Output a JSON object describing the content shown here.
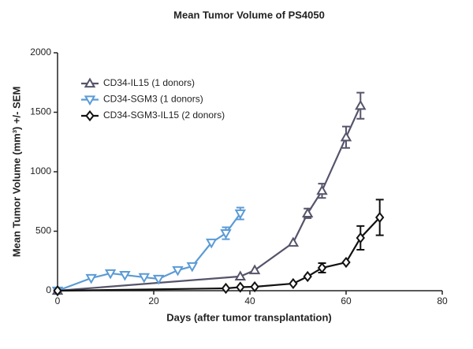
{
  "chart_data": {
    "type": "line",
    "title": "Mean Tumor Volume of PS4050",
    "x_label": "Days  (after tumor transplantation)",
    "y_label": "Mean Tumor Volume (mm³) +/- SEM",
    "xlim": [
      0,
      80
    ],
    "xticks": [
      0,
      20,
      40,
      60,
      80
    ],
    "ylim": [
      0,
      2000
    ],
    "yticks": [
      0,
      500,
      1000,
      1500,
      2000
    ],
    "grid": false,
    "legend": "upper left",
    "series": [
      {
        "name": "CD34-IL15 (1 donors)",
        "color": "#55546a",
        "marker": "triangle-up",
        "x": [
          0,
          38,
          41,
          49,
          52,
          55,
          60,
          63
        ],
        "values": [
          0,
          120,
          172,
          404,
          650,
          840,
          1290,
          1555
        ],
        "errors": [
          null,
          null,
          null,
          null,
          40,
          60,
          90,
          110
        ]
      },
      {
        "name": "CD34-SGM3 (1 donors)",
        "color": "#5b9bd5",
        "marker": "triangle-down",
        "x": [
          0,
          7,
          11,
          14,
          18,
          21,
          25,
          28,
          32,
          35,
          38
        ],
        "values": [
          0,
          106,
          146,
          132,
          113,
          99,
          172,
          205,
          404,
          483,
          649
        ],
        "errors": [
          null,
          null,
          null,
          null,
          null,
          null,
          null,
          null,
          null,
          50,
          50
        ]
      },
      {
        "name": "CD34-SGM3-IL15 (2 donors)",
        "color": "#111111",
        "marker": "diamond",
        "x": [
          0,
          35,
          38,
          41,
          49,
          52,
          55,
          60,
          63,
          67
        ],
        "values": [
          0,
          20,
          30,
          33,
          60,
          119,
          192,
          238,
          444,
          616
        ],
        "errors": [
          null,
          null,
          null,
          null,
          null,
          null,
          40,
          null,
          100,
          150
        ]
      }
    ]
  }
}
